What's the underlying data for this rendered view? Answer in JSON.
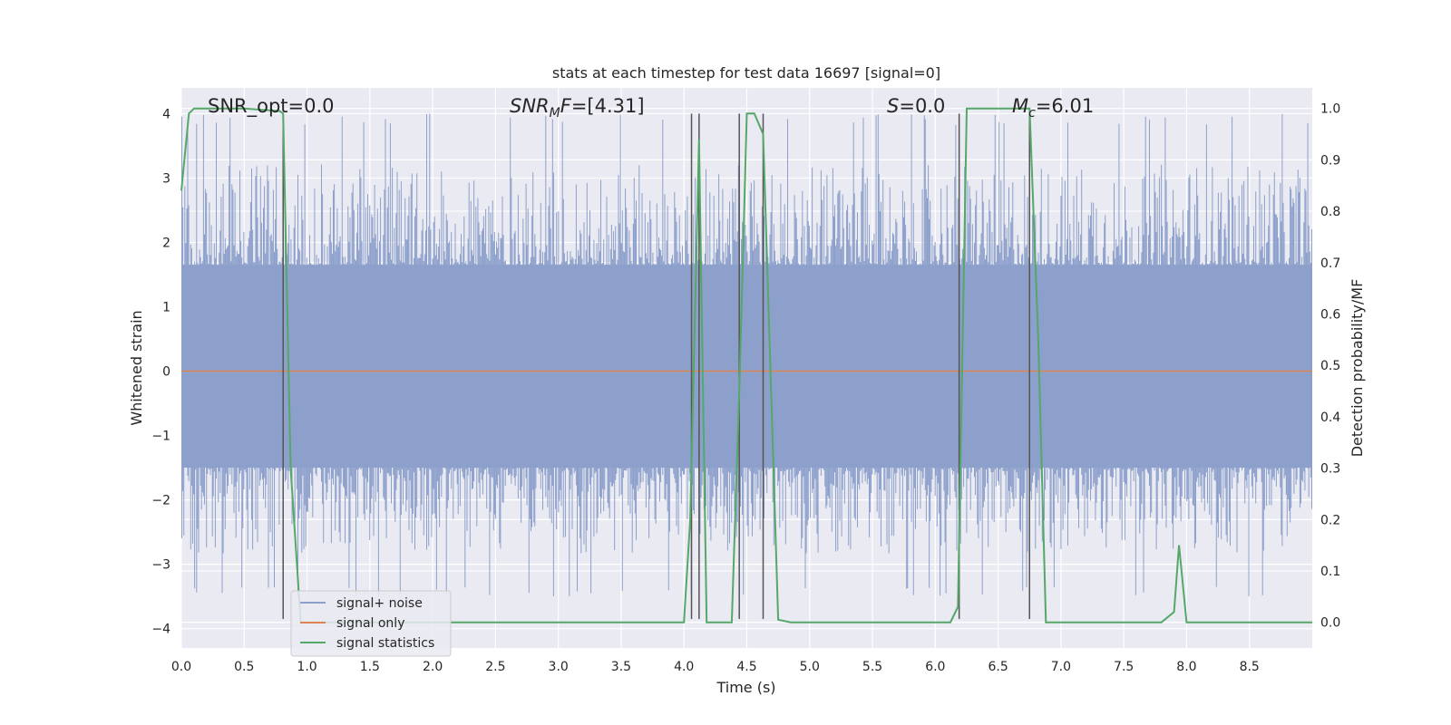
{
  "chart_data": {
    "type": "line",
    "title": "stats at each timestep for test data 16697 [signal=0]",
    "xlabel": "Time (s)",
    "ylabel": "Whitened strain",
    "y2label": "Detection probability/MF",
    "xlim": [
      0.0,
      9.0
    ],
    "ylim": [
      -4.3,
      4.4
    ],
    "y2lim": [
      -0.05,
      1.04
    ],
    "x_ticks": [
      "0.0",
      "0.5",
      "1.0",
      "1.5",
      "2.0",
      "2.5",
      "3.0",
      "3.5",
      "4.0",
      "4.5",
      "5.0",
      "5.5",
      "6.0",
      "6.5",
      "7.0",
      "7.5",
      "8.0",
      "8.5"
    ],
    "y_ticks": [
      "−4",
      "−3",
      "−2",
      "−1",
      "0",
      "1",
      "2",
      "3",
      "4"
    ],
    "y2_ticks": [
      "0.0",
      "0.1",
      "0.2",
      "0.3",
      "0.4",
      "0.5",
      "0.6",
      "0.7",
      "0.8",
      "0.9",
      "1.0"
    ],
    "grid": true,
    "legend_position": "bottom-left",
    "annotations": [
      {
        "label": "SNR_opt=0.0",
        "x": 0.2
      },
      {
        "label": "SNR_MF=[4.31]",
        "x": 2.6
      },
      {
        "label": "S=0.0",
        "x": 5.6
      },
      {
        "label": "M_c=6.01",
        "x": 6.6
      }
    ],
    "vertical_lines_x": [
      0.81,
      4.06,
      4.12,
      4.44,
      4.63,
      6.19,
      6.75
    ],
    "series": [
      {
        "name": "signal+ noise",
        "color": "#8da0cb",
        "axis": "left",
        "description_band": {
          "core": [
            -1.5,
            1.65
          ],
          "extreme": [
            -3.5,
            4.0
          ]
        }
      },
      {
        "name": "signal only",
        "color": "#dd8452",
        "axis": "left",
        "x": [
          0.0,
          9.0
        ],
        "y": [
          0.0,
          0.0
        ]
      },
      {
        "name": "signal statistics",
        "color": "#55a868",
        "axis": "right",
        "x": [
          0.0,
          0.06,
          0.1,
          0.2,
          0.5,
          0.78,
          0.81,
          0.87,
          0.95,
          1.5,
          2.0,
          3.0,
          3.5,
          4.0,
          4.05,
          4.12,
          4.18,
          4.25,
          4.38,
          4.44,
          4.5,
          4.56,
          4.63,
          4.75,
          4.85,
          5.0,
          5.5,
          6.0,
          6.12,
          6.18,
          6.25,
          6.5,
          6.75,
          6.82,
          6.88,
          7.0,
          7.5,
          7.8,
          7.9,
          7.94,
          8.0,
          8.5,
          9.0
        ],
        "y": [
          0.84,
          0.99,
          1.0,
          1.0,
          1.0,
          0.995,
          0.99,
          0.3,
          0.0,
          0.0,
          0.0,
          0.0,
          0.0,
          0.0,
          0.2,
          0.94,
          0.0,
          0.0,
          0.0,
          0.45,
          0.99,
          0.99,
          0.95,
          0.005,
          0.0,
          0.0,
          0.0,
          0.0,
          0.0,
          0.03,
          1.0,
          1.0,
          1.0,
          0.55,
          0.0,
          0.0,
          0.0,
          0.0,
          0.02,
          0.15,
          0.0,
          0.0,
          0.0
        ]
      }
    ]
  }
}
